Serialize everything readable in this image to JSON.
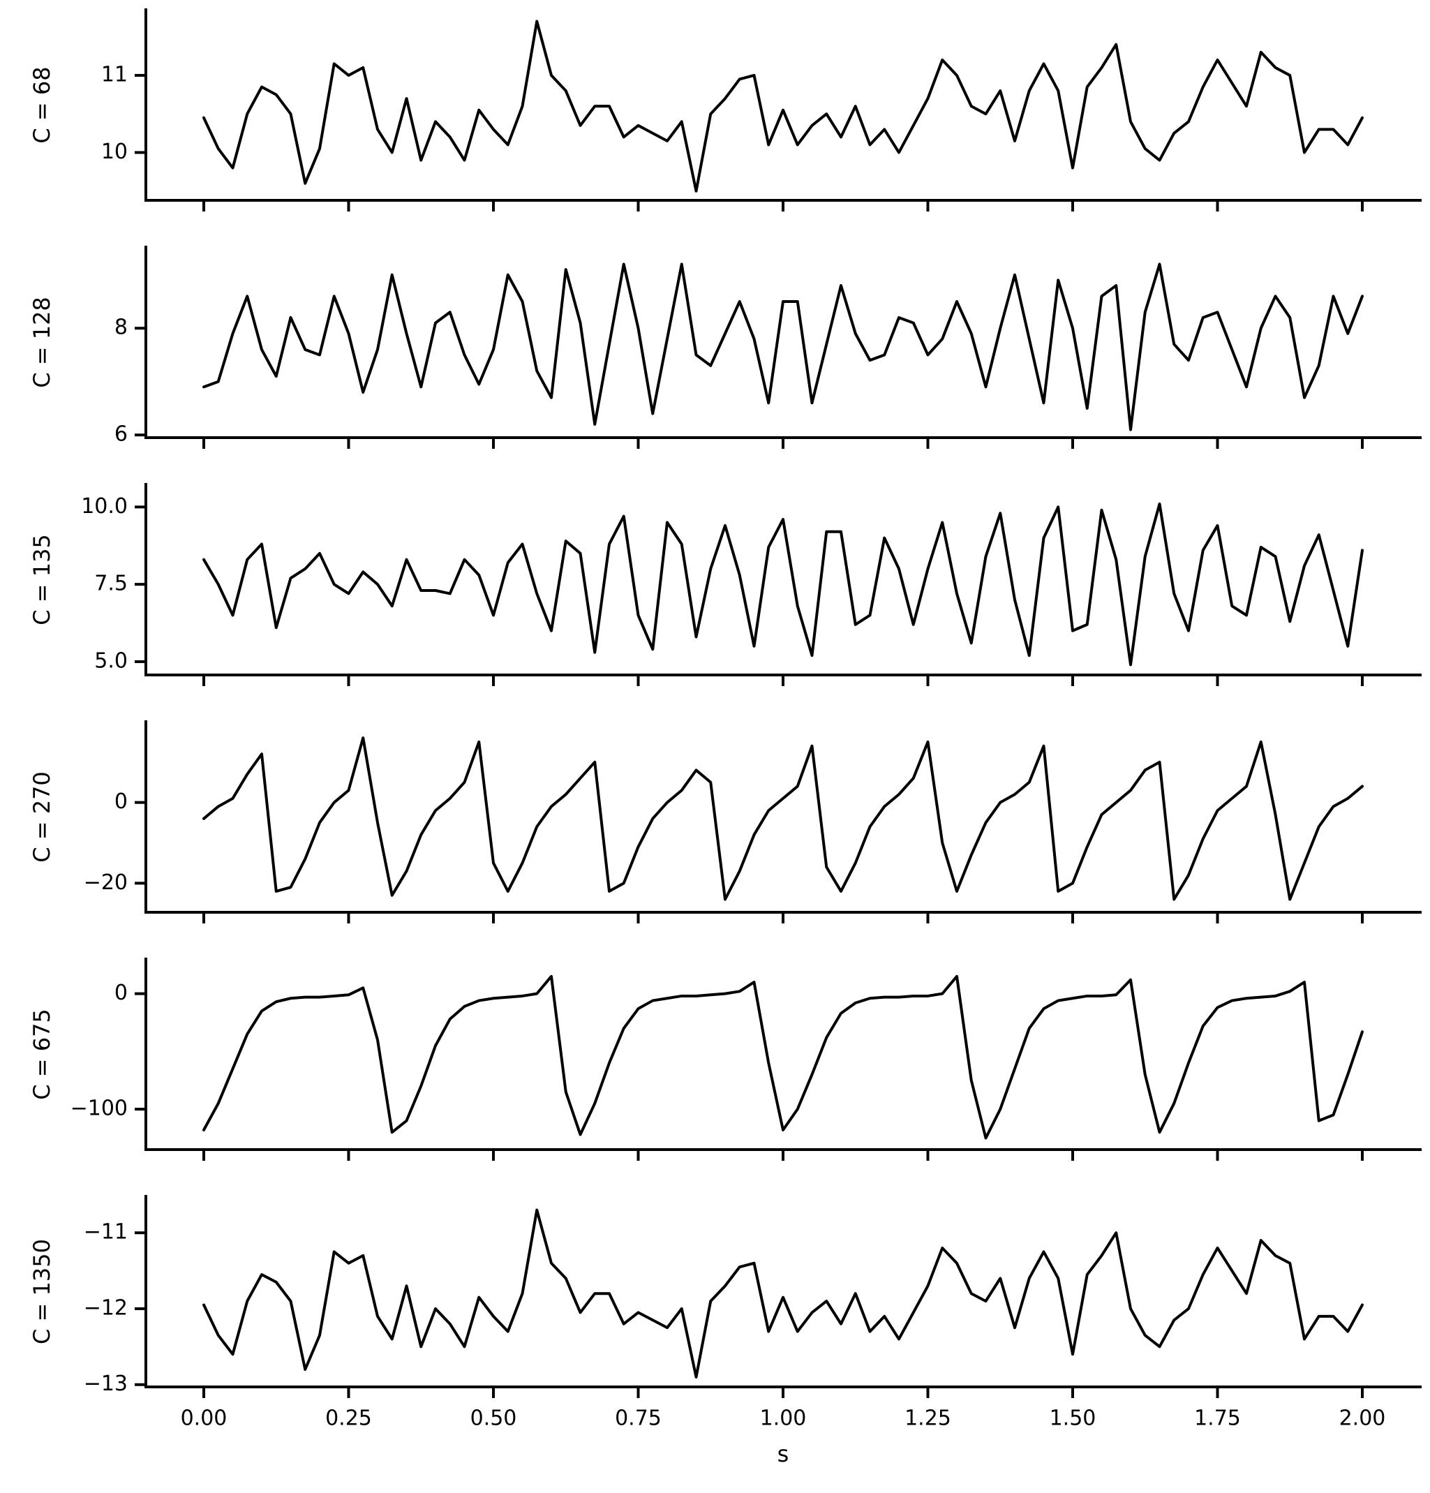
{
  "chart_data": [
    {
      "type": "line",
      "ylabel": "C = 68",
      "color": "#000000",
      "x": [
        0,
        0.025,
        0.05,
        0.075,
        0.1,
        0.125,
        0.15,
        0.175,
        0.2,
        0.225,
        0.25,
        0.275,
        0.3,
        0.325,
        0.35,
        0.375,
        0.4,
        0.425,
        0.45,
        0.475,
        0.5,
        0.525,
        0.55,
        0.575,
        0.6,
        0.625,
        0.65,
        0.675,
        0.7,
        0.725,
        0.75,
        0.775,
        0.8,
        0.825,
        0.85,
        0.875,
        0.9,
        0.925,
        0.95,
        0.975,
        1,
        1.025,
        1.05,
        1.075,
        1.1,
        1.125,
        1.15,
        1.175,
        1.2,
        1.225,
        1.25,
        1.275,
        1.3,
        1.325,
        1.35,
        1.375,
        1.4,
        1.425,
        1.45,
        1.475,
        1.5,
        1.525,
        1.55,
        1.575,
        1.6,
        1.625,
        1.65,
        1.675,
        1.7,
        1.725,
        1.75,
        1.775,
        1.8,
        1.825,
        1.85,
        1.875,
        1.9,
        1.925,
        1.95,
        1.975,
        2
      ],
      "values": [
        10.45,
        10.05,
        9.8,
        10.5,
        10.85,
        10.75,
        10.5,
        9.6,
        10.05,
        11.15,
        11.0,
        11.1,
        10.3,
        10.0,
        10.7,
        9.9,
        10.4,
        10.2,
        9.9,
        10.55,
        10.3,
        10.1,
        10.6,
        11.7,
        11.0,
        10.8,
        10.35,
        10.6,
        10.6,
        10.2,
        10.35,
        10.25,
        10.15,
        10.4,
        9.5,
        10.5,
        10.7,
        10.95,
        11.0,
        10.1,
        10.55,
        10.1,
        10.35,
        10.5,
        10.2,
        10.6,
        10.1,
        10.3,
        10.0,
        10.35,
        10.7,
        11.2,
        11.0,
        10.6,
        10.5,
        10.8,
        10.15,
        10.8,
        11.15,
        10.8,
        9.8,
        10.85,
        11.1,
        11.4,
        10.4,
        10.05,
        9.9,
        10.25,
        10.4,
        10.85,
        11.2,
        10.9,
        10.6,
        11.3,
        11.1,
        11.0,
        10.0,
        10.3,
        10.3,
        10.1,
        10.45
      ],
      "xlim": [
        -0.1,
        2.1
      ],
      "ylim": [
        9.38,
        11.85
      ],
      "yticks": [
        10,
        11
      ]
    },
    {
      "type": "line",
      "ylabel": "C = 128",
      "color": "#000000",
      "x": [
        0,
        0.025,
        0.05,
        0.075,
        0.1,
        0.125,
        0.15,
        0.175,
        0.2,
        0.225,
        0.25,
        0.275,
        0.3,
        0.325,
        0.35,
        0.375,
        0.4,
        0.425,
        0.45,
        0.475,
        0.5,
        0.525,
        0.55,
        0.575,
        0.6,
        0.625,
        0.65,
        0.675,
        0.7,
        0.725,
        0.75,
        0.775,
        0.8,
        0.825,
        0.85,
        0.875,
        0.9,
        0.925,
        0.95,
        0.975,
        1,
        1.025,
        1.05,
        1.075,
        1.1,
        1.125,
        1.15,
        1.175,
        1.2,
        1.225,
        1.25,
        1.275,
        1.3,
        1.325,
        1.35,
        1.375,
        1.4,
        1.425,
        1.45,
        1.475,
        1.5,
        1.525,
        1.55,
        1.575,
        1.6,
        1.625,
        1.65,
        1.675,
        1.7,
        1.725,
        1.75,
        1.775,
        1.8,
        1.825,
        1.85,
        1.875,
        1.9,
        1.925,
        1.95,
        1.975,
        2
      ],
      "values": [
        6.9,
        7.0,
        7.9,
        8.6,
        7.6,
        7.1,
        8.2,
        7.6,
        7.5,
        8.6,
        7.9,
        6.8,
        7.6,
        9.0,
        7.9,
        6.9,
        8.1,
        8.3,
        7.5,
        6.95,
        7.6,
        9.0,
        8.5,
        7.2,
        6.7,
        9.1,
        8.1,
        6.2,
        7.7,
        9.2,
        8.0,
        6.4,
        7.8,
        9.2,
        7.5,
        7.3,
        7.9,
        8.5,
        7.8,
        6.6,
        8.5,
        8.5,
        6.6,
        7.7,
        8.8,
        7.9,
        7.4,
        7.5,
        8.2,
        8.1,
        7.5,
        7.8,
        8.5,
        7.9,
        6.9,
        8.0,
        9.0,
        7.8,
        6.6,
        8.9,
        8.0,
        6.5,
        8.6,
        8.8,
        6.1,
        8.3,
        9.2,
        7.7,
        7.4,
        8.2,
        8.3,
        7.6,
        6.9,
        8.0,
        8.6,
        8.2,
        6.7,
        7.3,
        8.6,
        7.9,
        8.6
      ],
      "xlim": [
        -0.1,
        2.1
      ],
      "ylim": [
        5.95,
        9.52
      ],
      "yticks": [
        6,
        8
      ]
    },
    {
      "type": "line",
      "ylabel": "C = 135",
      "color": "#000000",
      "x": [
        0,
        0.025,
        0.05,
        0.075,
        0.1,
        0.125,
        0.15,
        0.175,
        0.2,
        0.225,
        0.25,
        0.275,
        0.3,
        0.325,
        0.35,
        0.375,
        0.4,
        0.425,
        0.45,
        0.475,
        0.5,
        0.525,
        0.55,
        0.575,
        0.6,
        0.625,
        0.65,
        0.675,
        0.7,
        0.725,
        0.75,
        0.775,
        0.8,
        0.825,
        0.85,
        0.875,
        0.9,
        0.925,
        0.95,
        0.975,
        1,
        1.025,
        1.05,
        1.075,
        1.1,
        1.125,
        1.15,
        1.175,
        1.2,
        1.225,
        1.25,
        1.275,
        1.3,
        1.325,
        1.35,
        1.375,
        1.4,
        1.425,
        1.45,
        1.475,
        1.5,
        1.525,
        1.55,
        1.575,
        1.6,
        1.625,
        1.65,
        1.675,
        1.7,
        1.725,
        1.75,
        1.775,
        1.8,
        1.825,
        1.85,
        1.875,
        1.9,
        1.925,
        1.95,
        1.975,
        2
      ],
      "values": [
        8.3,
        7.5,
        6.5,
        8.3,
        8.8,
        6.1,
        7.7,
        8.0,
        8.5,
        7.5,
        7.2,
        7.9,
        7.5,
        6.8,
        8.3,
        7.3,
        7.3,
        7.2,
        8.3,
        7.8,
        6.5,
        8.2,
        8.8,
        7.2,
        6.0,
        8.9,
        8.5,
        5.3,
        8.8,
        9.7,
        6.5,
        5.4,
        9.5,
        8.8,
        5.8,
        8.0,
        9.4,
        7.8,
        5.5,
        8.7,
        9.6,
        6.8,
        5.2,
        9.2,
        9.2,
        6.2,
        6.5,
        9.0,
        8.0,
        6.2,
        8.0,
        9.5,
        7.2,
        5.6,
        8.4,
        9.8,
        7.0,
        5.2,
        9.0,
        10.0,
        6.0,
        6.2,
        9.9,
        8.3,
        4.9,
        8.4,
        10.1,
        7.2,
        6.0,
        8.6,
        9.4,
        6.8,
        6.5,
        8.7,
        8.4,
        6.3,
        8.1,
        9.1,
        7.3,
        5.5,
        8.6
      ],
      "xlim": [
        -0.1,
        2.1
      ],
      "ylim": [
        4.57,
        10.73
      ],
      "yticks": [
        {
          "value": 5,
          "label": "5.0"
        },
        7.5,
        {
          "value": 10,
          "label": "10.0"
        }
      ]
    },
    {
      "type": "line",
      "ylabel": "C = 270",
      "color": "#000000",
      "x": [
        0,
        0.025,
        0.05,
        0.075,
        0.1,
        0.125,
        0.15,
        0.175,
        0.2,
        0.225,
        0.25,
        0.275,
        0.3,
        0.325,
        0.35,
        0.375,
        0.4,
        0.425,
        0.45,
        0.475,
        0.5,
        0.525,
        0.55,
        0.575,
        0.6,
        0.625,
        0.65,
        0.675,
        0.7,
        0.725,
        0.75,
        0.775,
        0.8,
        0.825,
        0.85,
        0.875,
        0.9,
        0.925,
        0.95,
        0.975,
        1,
        1.025,
        1.05,
        1.075,
        1.1,
        1.125,
        1.15,
        1.175,
        1.2,
        1.225,
        1.25,
        1.275,
        1.3,
        1.325,
        1.35,
        1.375,
        1.4,
        1.425,
        1.45,
        1.475,
        1.5,
        1.525,
        1.55,
        1.575,
        1.6,
        1.625,
        1.65,
        1.675,
        1.7,
        1.725,
        1.75,
        1.775,
        1.8,
        1.825,
        1.85,
        1.875,
        1.9,
        1.925,
        1.95,
        1.975,
        2
      ],
      "values": [
        -4,
        -1,
        1,
        7,
        12,
        -22,
        -21,
        -14,
        -5,
        0,
        3,
        16,
        -5,
        -23,
        -17,
        -8,
        -2,
        1,
        5,
        15,
        -15,
        -22,
        -15,
        -6,
        -1,
        2,
        6,
        10,
        -22,
        -20,
        -11,
        -4,
        0,
        3,
        8,
        5,
        -24,
        -17,
        -8,
        -2,
        1,
        4,
        14,
        -16,
        -22,
        -15,
        -6,
        -1,
        2,
        6,
        15,
        -10,
        -22,
        -13,
        -5,
        0,
        2,
        5,
        14,
        -22,
        -20,
        -11,
        -3,
        0,
        3,
        8,
        10,
        -24,
        -18,
        -9,
        -2,
        1,
        4,
        15,
        -3,
        -24,
        -15,
        -6,
        -1,
        1,
        4
      ],
      "xlim": [
        -0.1,
        2.1
      ],
      "ylim": [
        -27.2,
        20
      ],
      "yticks": [
        {
          "value": -20,
          "label": "−20"
        },
        0
      ]
    },
    {
      "type": "line",
      "ylabel": "C = 675",
      "color": "#000000",
      "x": [
        0,
        0.025,
        0.05,
        0.075,
        0.1,
        0.125,
        0.15,
        0.175,
        0.2,
        0.225,
        0.25,
        0.275,
        0.3,
        0.325,
        0.35,
        0.375,
        0.4,
        0.425,
        0.45,
        0.475,
        0.5,
        0.525,
        0.55,
        0.575,
        0.6,
        0.625,
        0.65,
        0.675,
        0.7,
        0.725,
        0.75,
        0.775,
        0.8,
        0.825,
        0.85,
        0.875,
        0.9,
        0.925,
        0.95,
        0.975,
        1,
        1.025,
        1.05,
        1.075,
        1.1,
        1.125,
        1.15,
        1.175,
        1.2,
        1.225,
        1.25,
        1.275,
        1.3,
        1.325,
        1.35,
        1.375,
        1.4,
        1.425,
        1.45,
        1.475,
        1.5,
        1.525,
        1.55,
        1.575,
        1.6,
        1.625,
        1.65,
        1.675,
        1.7,
        1.725,
        1.75,
        1.775,
        1.8,
        1.825,
        1.85,
        1.875,
        1.9,
        1.925,
        1.95,
        1.975,
        2
      ],
      "values": [
        -118,
        -95,
        -65,
        -35,
        -15,
        -7,
        -4,
        -3,
        -3,
        -2,
        -1,
        5,
        -40,
        -120,
        -110,
        -80,
        -45,
        -22,
        -11,
        -6,
        -4,
        -3,
        -2,
        0,
        15,
        -85,
        -122,
        -95,
        -60,
        -30,
        -13,
        -6,
        -4,
        -2,
        -2,
        -1,
        0,
        2,
        10,
        -60,
        -118,
        -100,
        -70,
        -38,
        -17,
        -8,
        -4,
        -3,
        -3,
        -2,
        -2,
        0,
        15,
        -75,
        -125,
        -100,
        -65,
        -30,
        -13,
        -6,
        -4,
        -2,
        -2,
        -1,
        12,
        -70,
        -120,
        -95,
        -60,
        -28,
        -12,
        -6,
        -4,
        -3,
        -2,
        2,
        10,
        -110,
        -105,
        -70,
        -33
      ],
      "xlim": [
        -0.1,
        2.1
      ],
      "ylim": [
        -135,
        30
      ],
      "yticks": [
        {
          "value": -100,
          "label": "−100"
        },
        0
      ]
    },
    {
      "type": "line",
      "ylabel": "C = 1350",
      "xlabel": "s",
      "color": "#000000",
      "x": [
        0,
        0.025,
        0.05,
        0.075,
        0.1,
        0.125,
        0.15,
        0.175,
        0.2,
        0.225,
        0.25,
        0.275,
        0.3,
        0.325,
        0.35,
        0.375,
        0.4,
        0.425,
        0.45,
        0.475,
        0.5,
        0.525,
        0.55,
        0.575,
        0.6,
        0.625,
        0.65,
        0.675,
        0.7,
        0.725,
        0.75,
        0.775,
        0.8,
        0.825,
        0.85,
        0.875,
        0.9,
        0.925,
        0.95,
        0.975,
        1,
        1.025,
        1.05,
        1.075,
        1.1,
        1.125,
        1.15,
        1.175,
        1.2,
        1.225,
        1.25,
        1.275,
        1.3,
        1.325,
        1.35,
        1.375,
        1.4,
        1.425,
        1.45,
        1.475,
        1.5,
        1.525,
        1.55,
        1.575,
        1.6,
        1.625,
        1.65,
        1.675,
        1.7,
        1.725,
        1.75,
        1.775,
        1.8,
        1.825,
        1.85,
        1.875,
        1.9,
        1.925,
        1.95,
        1.975,
        2
      ],
      "values": [
        -11.95,
        -12.35,
        -12.6,
        -11.9,
        -11.55,
        -11.65,
        -11.9,
        -12.8,
        -12.35,
        -11.25,
        -11.4,
        -11.3,
        -12.1,
        -12.4,
        -11.7,
        -12.5,
        -12.0,
        -12.2,
        -12.5,
        -11.85,
        -12.1,
        -12.3,
        -11.8,
        -10.7,
        -11.4,
        -11.6,
        -12.05,
        -11.8,
        -11.8,
        -12.2,
        -12.05,
        -12.15,
        -12.25,
        -12.0,
        -12.9,
        -11.9,
        -11.7,
        -11.45,
        -11.4,
        -12.3,
        -11.85,
        -12.3,
        -12.05,
        -11.9,
        -12.2,
        -11.8,
        -12.3,
        -12.1,
        -12.4,
        -12.05,
        -11.7,
        -11.2,
        -11.4,
        -11.8,
        -11.9,
        -11.6,
        -12.25,
        -11.6,
        -11.25,
        -11.6,
        -12.6,
        -11.55,
        -11.3,
        -11.0,
        -12.0,
        -12.35,
        -12.5,
        -12.15,
        -12.0,
        -11.55,
        -11.2,
        -11.5,
        -11.8,
        -11.1,
        -11.3,
        -11.4,
        -12.4,
        -12.1,
        -12.1,
        -12.3,
        -11.95
      ],
      "xlim": [
        -0.1,
        2.1
      ],
      "ylim": [
        -13.03,
        -10.52
      ],
      "yticks": [
        {
          "value": -13,
          "label": "−13"
        },
        {
          "value": -12,
          "label": "−12"
        },
        {
          "value": -11,
          "label": "−11"
        }
      ],
      "xticks": [
        {
          "value": 0,
          "label": "0.00"
        },
        0.25,
        {
          "value": 0.5,
          "label": "0.50"
        },
        0.75,
        {
          "value": 1,
          "label": "1.00"
        },
        1.25,
        {
          "value": 1.5,
          "label": "1.50"
        },
        1.75,
        {
          "value": 2,
          "label": "2.00"
        }
      ]
    }
  ]
}
